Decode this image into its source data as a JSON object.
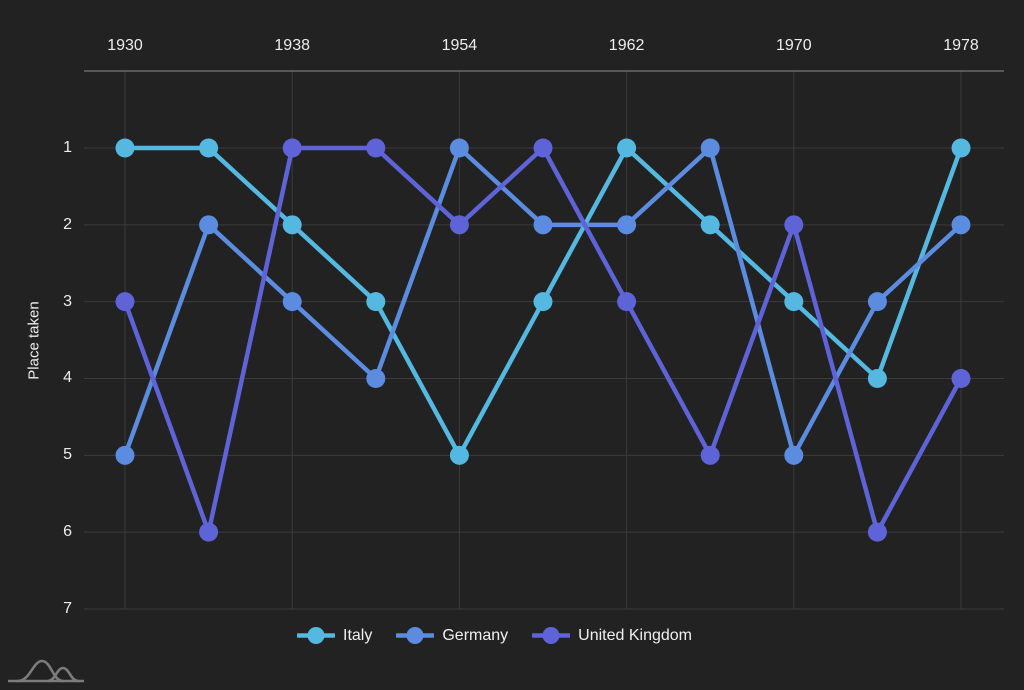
{
  "page": {
    "background": "#222222"
  },
  "colors": {
    "background": "#222222",
    "grid": "#3b3b3b",
    "axis_line": "#8c8c8c",
    "text": "#ededed",
    "logo": "#7c7c7c"
  },
  "y_axis": {
    "title": "Place taken"
  },
  "chart_data": {
    "type": "line",
    "title": "",
    "xlabel": "",
    "ylabel": "Place taken",
    "x": [
      1930,
      1934,
      1938,
      1950,
      1954,
      1958,
      1962,
      1966,
      1970,
      1974,
      1978
    ],
    "x_tick_labels_visible": [
      "1930",
      "1938",
      "1954",
      "1962",
      "1970",
      "1978"
    ],
    "y_ticks": [
      1,
      2,
      3,
      4,
      5,
      6,
      7
    ],
    "y_inverted": true,
    "ylim": [
      1,
      7
    ],
    "grid": true,
    "x_axis_position": "top",
    "legend_position": "bottom",
    "series": [
      {
        "name": "Italy",
        "color": "#55b8e0",
        "values": [
          1,
          1,
          2,
          3,
          5,
          3,
          1,
          2,
          3,
          4,
          1
        ]
      },
      {
        "name": "Germany",
        "color": "#5b8cdf",
        "values": [
          5,
          2,
          3,
          4,
          1,
          2,
          2,
          1,
          5,
          3,
          2
        ]
      },
      {
        "name": "United Kingdom",
        "color": "#5f63d8",
        "values": [
          3,
          6,
          1,
          1,
          2,
          1,
          3,
          5,
          2,
          6,
          4
        ]
      }
    ]
  }
}
